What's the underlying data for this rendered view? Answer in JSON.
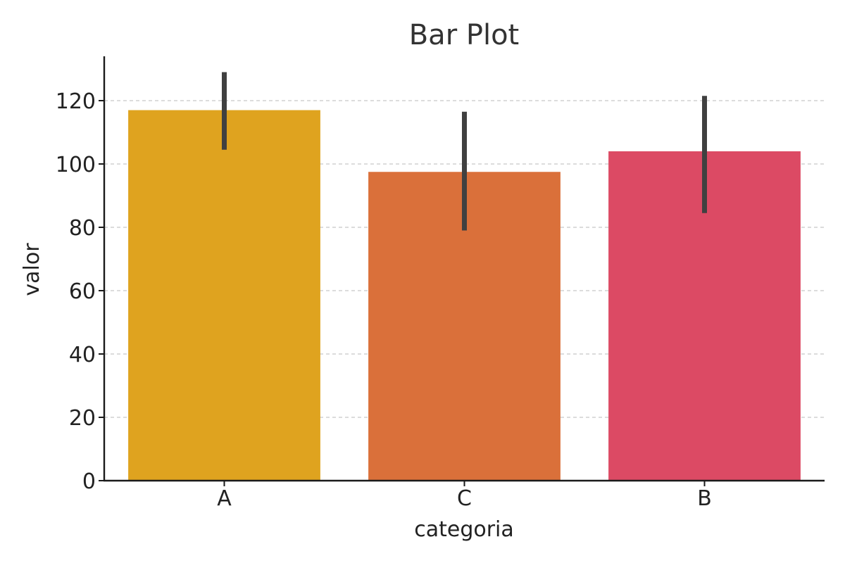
{
  "chart_data": {
    "type": "bar",
    "title": "Bar Plot",
    "xlabel": "categoria",
    "ylabel": "valor",
    "categories": [
      "A",
      "C",
      "B"
    ],
    "values": [
      117,
      97.5,
      104
    ],
    "error_low": [
      104.5,
      79,
      84.5
    ],
    "error_high": [
      129,
      116.5,
      121.5
    ],
    "colors": [
      "#dfa31f",
      "#da703a",
      "#dc4a64"
    ],
    "ylim": [
      0,
      134
    ],
    "yticks": [
      0,
      20,
      40,
      60,
      80,
      100,
      120
    ],
    "grid": "horizontal dashed",
    "legend": "none"
  },
  "style": {
    "error_color": "#404040",
    "grid_color": "#c8c8c8",
    "axis_color": "#1a1a1a",
    "text_color": "#222222"
  }
}
